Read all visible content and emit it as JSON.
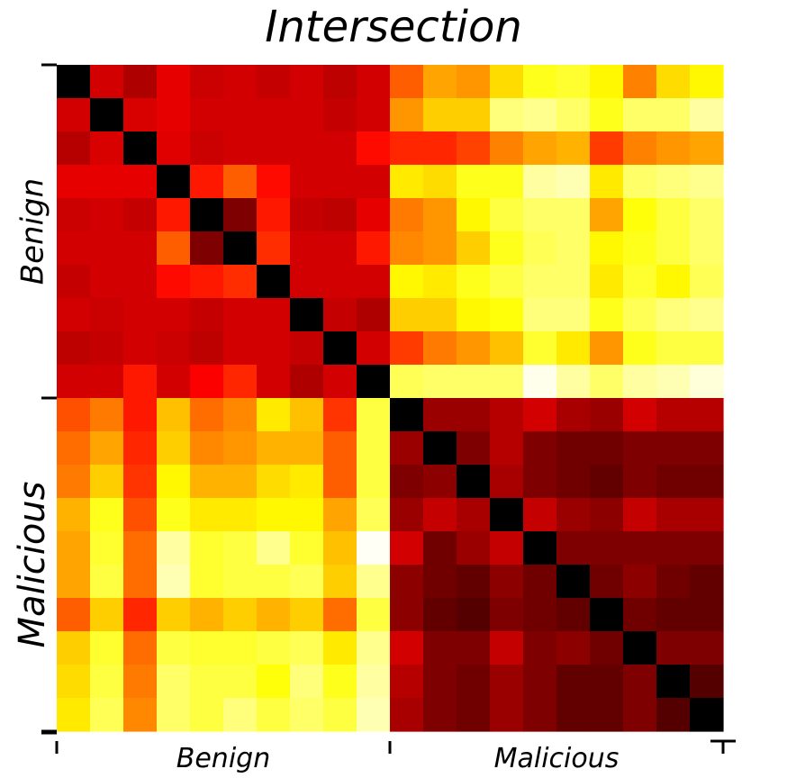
{
  "chart_data": {
    "type": "heatmap",
    "title": "Intersection",
    "xlabel": "",
    "ylabel": "",
    "x_group_labels": [
      "Benign",
      "Malicious"
    ],
    "y_group_labels": [
      "Benign",
      "Malicious"
    ],
    "group_size": 10,
    "colormap": "hot",
    "value_range": [
      0,
      1
    ],
    "colorbar": false,
    "grid": false,
    "values": [
      [
        0.0,
        0.3,
        0.25,
        0.33,
        0.29,
        0.3,
        0.28,
        0.3,
        0.27,
        0.3,
        0.5,
        0.6,
        0.58,
        0.68,
        0.76,
        0.78,
        0.72,
        0.55,
        0.68,
        0.72
      ],
      [
        0.3,
        0.0,
        0.31,
        0.33,
        0.3,
        0.3,
        0.3,
        0.3,
        0.28,
        0.3,
        0.58,
        0.66,
        0.66,
        0.86,
        0.88,
        0.84,
        0.76,
        0.84,
        0.84,
        0.9
      ],
      [
        0.26,
        0.31,
        0.0,
        0.32,
        0.29,
        0.3,
        0.3,
        0.3,
        0.3,
        0.38,
        0.42,
        0.42,
        0.46,
        0.55,
        0.6,
        0.62,
        0.45,
        0.55,
        0.58,
        0.6
      ],
      [
        0.33,
        0.33,
        0.33,
        0.0,
        0.4,
        0.5,
        0.38,
        0.3,
        0.3,
        0.3,
        0.7,
        0.68,
        0.76,
        0.76,
        0.9,
        0.92,
        0.7,
        0.84,
        0.86,
        0.88
      ],
      [
        0.29,
        0.3,
        0.28,
        0.4,
        0.0,
        0.18,
        0.4,
        0.28,
        0.27,
        0.33,
        0.54,
        0.58,
        0.72,
        0.8,
        0.84,
        0.84,
        0.6,
        0.74,
        0.8,
        0.84
      ],
      [
        0.3,
        0.3,
        0.3,
        0.5,
        0.18,
        0.0,
        0.43,
        0.3,
        0.3,
        0.4,
        0.56,
        0.58,
        0.66,
        0.76,
        0.82,
        0.84,
        0.72,
        0.76,
        0.8,
        0.84
      ],
      [
        0.28,
        0.3,
        0.3,
        0.38,
        0.4,
        0.43,
        0.0,
        0.3,
        0.3,
        0.3,
        0.72,
        0.7,
        0.76,
        0.8,
        0.84,
        0.84,
        0.7,
        0.78,
        0.72,
        0.82
      ],
      [
        0.3,
        0.29,
        0.3,
        0.3,
        0.28,
        0.3,
        0.3,
        0.0,
        0.28,
        0.25,
        0.66,
        0.66,
        0.72,
        0.74,
        0.86,
        0.86,
        0.76,
        0.82,
        0.86,
        0.88
      ],
      [
        0.27,
        0.28,
        0.3,
        0.29,
        0.27,
        0.3,
        0.3,
        0.28,
        0.0,
        0.3,
        0.45,
        0.54,
        0.58,
        0.64,
        0.78,
        0.7,
        0.58,
        0.76,
        0.8,
        0.8
      ],
      [
        0.3,
        0.3,
        0.4,
        0.3,
        0.36,
        0.42,
        0.3,
        0.25,
        0.3,
        0.0,
        0.82,
        0.84,
        0.84,
        0.84,
        0.98,
        0.9,
        0.84,
        0.9,
        0.92,
        0.96
      ],
      [
        0.48,
        0.54,
        0.4,
        0.64,
        0.52,
        0.56,
        0.7,
        0.64,
        0.44,
        0.8,
        0.0,
        0.22,
        0.22,
        0.26,
        0.3,
        0.24,
        0.22,
        0.3,
        0.26,
        0.26
      ],
      [
        0.52,
        0.6,
        0.42,
        0.66,
        0.56,
        0.58,
        0.62,
        0.62,
        0.5,
        0.8,
        0.22,
        0.0,
        0.18,
        0.26,
        0.18,
        0.16,
        0.16,
        0.18,
        0.18,
        0.18
      ],
      [
        0.54,
        0.66,
        0.44,
        0.72,
        0.62,
        0.62,
        0.68,
        0.7,
        0.5,
        0.8,
        0.18,
        0.2,
        0.0,
        0.24,
        0.18,
        0.16,
        0.14,
        0.18,
        0.16,
        0.16
      ],
      [
        0.62,
        0.76,
        0.48,
        0.76,
        0.7,
        0.7,
        0.72,
        0.72,
        0.6,
        0.82,
        0.22,
        0.28,
        0.24,
        0.0,
        0.28,
        0.22,
        0.2,
        0.28,
        0.24,
        0.24
      ],
      [
        0.6,
        0.78,
        0.52,
        0.9,
        0.78,
        0.8,
        0.88,
        0.78,
        0.64,
        0.99,
        0.3,
        0.16,
        0.22,
        0.28,
        0.0,
        0.18,
        0.18,
        0.18,
        0.18,
        0.18
      ],
      [
        0.6,
        0.8,
        0.52,
        0.92,
        0.78,
        0.8,
        0.8,
        0.82,
        0.66,
        0.88,
        0.2,
        0.16,
        0.14,
        0.2,
        0.16,
        0.0,
        0.16,
        0.2,
        0.16,
        0.14
      ],
      [
        0.5,
        0.66,
        0.42,
        0.66,
        0.62,
        0.66,
        0.62,
        0.66,
        0.52,
        0.8,
        0.2,
        0.14,
        0.12,
        0.18,
        0.16,
        0.14,
        0.0,
        0.16,
        0.14,
        0.14
      ],
      [
        0.66,
        0.78,
        0.52,
        0.8,
        0.78,
        0.78,
        0.8,
        0.82,
        0.7,
        0.88,
        0.3,
        0.18,
        0.18,
        0.28,
        0.18,
        0.2,
        0.16,
        0.0,
        0.18,
        0.18
      ],
      [
        0.68,
        0.8,
        0.54,
        0.84,
        0.8,
        0.8,
        0.74,
        0.86,
        0.76,
        0.9,
        0.26,
        0.18,
        0.16,
        0.22,
        0.18,
        0.14,
        0.14,
        0.18,
        0.0,
        0.12
      ],
      [
        0.7,
        0.82,
        0.56,
        0.84,
        0.8,
        0.86,
        0.8,
        0.84,
        0.8,
        0.92,
        0.24,
        0.18,
        0.16,
        0.22,
        0.18,
        0.14,
        0.14,
        0.18,
        0.12,
        0.0
      ]
    ]
  }
}
